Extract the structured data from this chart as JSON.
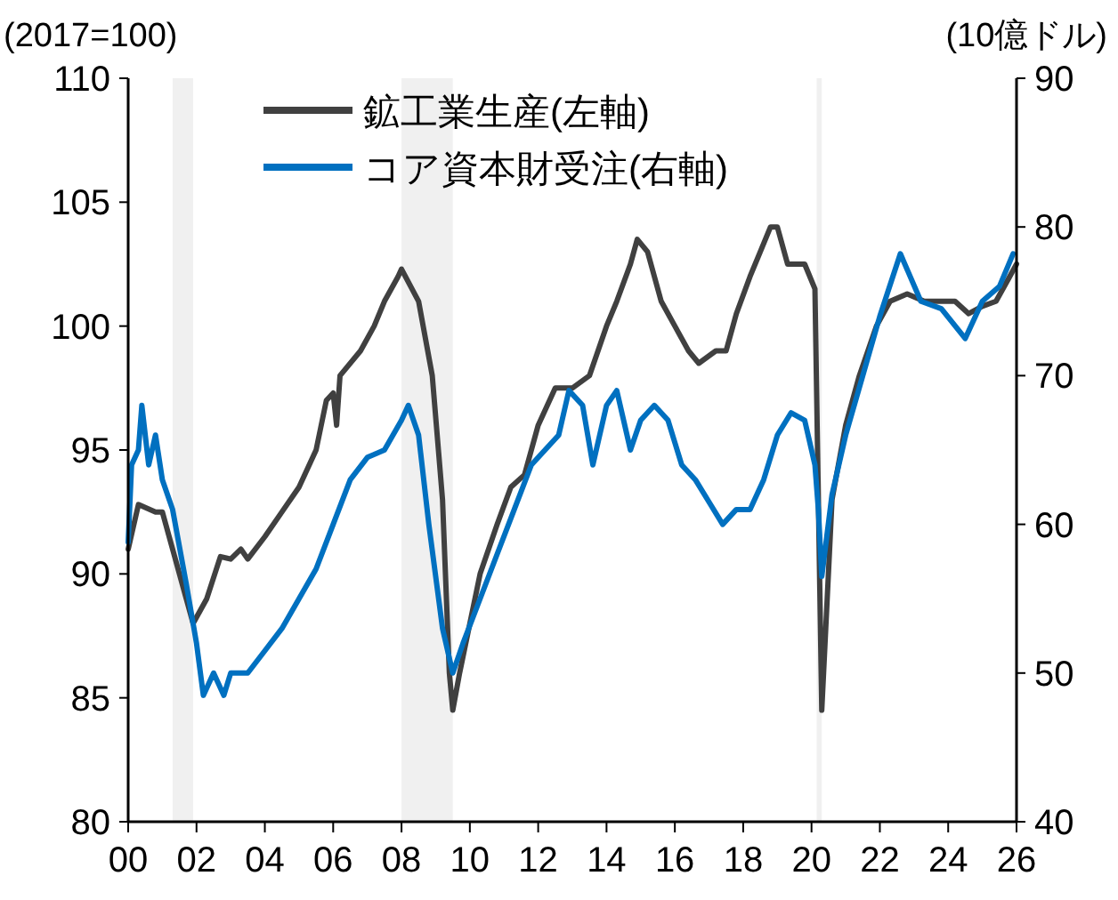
{
  "chart_data": {
    "type": "line",
    "ylabel": "(2017=100)",
    "y2label": "(10億ドル)",
    "xlim": [
      2000,
      2026
    ],
    "xticks": [
      {
        "value": 2000,
        "label": "00"
      },
      {
        "value": 2002,
        "label": "02"
      },
      {
        "value": 2004,
        "label": "04"
      },
      {
        "value": 2006,
        "label": "06"
      },
      {
        "value": 2008,
        "label": "08"
      },
      {
        "value": 2010,
        "label": "10"
      },
      {
        "value": 2012,
        "label": "12"
      },
      {
        "value": 2014,
        "label": "14"
      },
      {
        "value": 2016,
        "label": "16"
      },
      {
        "value": 2018,
        "label": "18"
      },
      {
        "value": 2020,
        "label": "20"
      },
      {
        "value": 2022,
        "label": "22"
      },
      {
        "value": 2024,
        "label": "24"
      },
      {
        "value": 2026,
        "label": "26"
      }
    ],
    "ylim": [
      80,
      110
    ],
    "yticks": [
      80,
      85,
      90,
      95,
      100,
      105,
      110
    ],
    "y2lim": [
      40,
      90
    ],
    "y2ticks": [
      40,
      50,
      60,
      70,
      80,
      90
    ],
    "legend": "top",
    "grid": false,
    "bands": [
      {
        "axis": "x",
        "from": 2001.3,
        "to": 2001.9,
        "color": "#f0f0f0"
      },
      {
        "axis": "x",
        "from": 2008.0,
        "to": 2009.5,
        "color": "#f0f0f0"
      },
      {
        "axis": "x",
        "from": 2020.15,
        "to": 2020.3,
        "color": "#f0f0f0"
      }
    ],
    "series": [
      {
        "name": "鉱工業生産(左軸)",
        "color": "#404040",
        "x": [
          2000,
          2000.3,
          2000.8,
          2001,
          2001.3,
          2001.7,
          2001.9,
          2002.3,
          2002.7,
          2003,
          2003.3,
          2003.5,
          2004,
          2004.5,
          2005,
          2005.5,
          2005.8,
          2006,
          2006.1,
          2006.2,
          2006.8,
          2007.2,
          2007.5,
          2007.9,
          2008,
          2008.5,
          2008.9,
          2009.2,
          2009.4,
          2009.5,
          2009.7,
          2010,
          2010.3,
          2010.8,
          2011.2,
          2011.6,
          2012,
          2012.5,
          2013,
          2013.5,
          2014,
          2014.3,
          2014.7,
          2014.9,
          2015.2,
          2015.6,
          2016,
          2016.4,
          2016.7,
          2017.2,
          2017.5,
          2017.8,
          2018.2,
          2018.5,
          2018.8,
          2019,
          2019.3,
          2019.8,
          2020.1,
          2020.3,
          2020.6,
          2021,
          2021.4,
          2021.9,
          2022.3,
          2022.8,
          2023.3,
          2023.8,
          2024.2,
          2024.6,
          2025,
          2025.4,
          2025.8,
          2026
        ],
        "values": [
          91,
          92.8,
          92.5,
          92.5,
          91,
          89,
          88,
          89,
          90.7,
          90.6,
          91,
          90.6,
          91.5,
          92.5,
          93.5,
          95,
          97,
          97.3,
          96,
          98,
          99,
          100,
          101,
          102,
          102.3,
          101,
          98,
          93,
          86,
          84.5,
          86,
          88,
          90,
          92,
          93.5,
          94,
          96,
          97.5,
          97.5,
          98,
          100,
          101,
          102.5,
          103.5,
          103,
          101,
          100,
          99,
          98.5,
          99,
          99,
          100.5,
          102,
          103,
          104,
          104,
          102.5,
          102.5,
          101.5,
          84.5,
          93,
          96,
          98,
          100,
          101,
          101.3,
          101,
          101,
          101,
          100.5,
          100.8,
          101,
          102,
          102.5
        ]
      },
      {
        "name": "コア資本財受注(右軸)",
        "color": "#0070c0",
        "axis": "y2",
        "x": [
          2000,
          2000.1,
          2000.3,
          2000.4,
          2000.6,
          2000.8,
          2001,
          2001.3,
          2001.7,
          2002,
          2002.2,
          2002.5,
          2002.8,
          2003,
          2003.5,
          2004,
          2004.5,
          2005,
          2005.5,
          2006,
          2006.5,
          2007,
          2007.5,
          2008,
          2008.2,
          2008.5,
          2008.8,
          2009.2,
          2009.5,
          2009.8,
          2010.3,
          2010.8,
          2011.3,
          2011.8,
          2012.2,
          2012.6,
          2012.9,
          2013.3,
          2013.6,
          2014,
          2014.3,
          2014.7,
          2015,
          2015.4,
          2015.8,
          2016.2,
          2016.6,
          2017,
          2017.4,
          2017.8,
          2018.2,
          2018.6,
          2019,
          2019.4,
          2019.8,
          2020.1,
          2020.2,
          2020.3,
          2020.6,
          2021,
          2021.5,
          2022,
          2022.6,
          2023.2,
          2023.8,
          2024.5,
          2025,
          2025.5,
          2025.9
        ],
        "values": [
          58.8,
          64,
          65,
          68,
          64,
          66,
          63,
          61,
          56,
          52,
          48.5,
          50,
          48.5,
          50,
          50,
          51.5,
          53,
          55,
          57,
          60,
          63,
          64.5,
          65,
          67,
          68,
          66,
          60,
          53,
          50,
          52,
          55,
          58,
          61,
          64,
          65,
          66,
          69,
          68,
          64,
          68,
          69,
          65,
          67,
          68,
          67,
          64,
          63,
          61.5,
          60,
          61,
          61,
          63,
          66,
          67.5,
          67,
          64,
          61,
          56.5,
          62,
          66,
          70,
          74,
          78.2,
          75,
          74.5,
          72.5,
          75,
          76,
          78.2
        ]
      }
    ]
  }
}
